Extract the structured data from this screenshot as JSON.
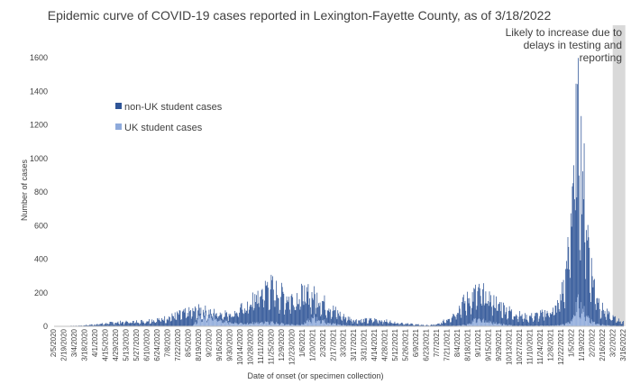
{
  "chart_data": {
    "type": "bar",
    "stacked": true,
    "title": "Epidemic curve of COVID-19 cases reported in Lexington-Fayette County, as of 3/18/2022",
    "xlabel": "Date of onset (or specimen collection)",
    "ylabel": "Number of cases",
    "ylim": [
      0,
      1600
    ],
    "yticks": [
      0,
      200,
      400,
      600,
      800,
      1000,
      1200,
      1400,
      1600
    ],
    "grid": false,
    "legend_position": "upper-left",
    "x_start_date": "2020-02-05",
    "x_end_date": "2022-03-15",
    "xtick_labels": [
      "2/5/2020",
      "2/19/2020",
      "3/4/2020",
      "3/18/2020",
      "4/1/2020",
      "4/15/2020",
      "4/29/2020",
      "5/13/2020",
      "5/27/2020",
      "6/10/2020",
      "6/24/2020",
      "7/8/2020",
      "7/22/2020",
      "8/5/2020",
      "8/19/2020",
      "9/2/2020",
      "9/16/2020",
      "9/30/2020",
      "10/14/2020",
      "10/28/2020",
      "11/11/2020",
      "11/25/2020",
      "12/9/2020",
      "12/23/2020",
      "1/6/2021",
      "1/20/2021",
      "2/3/2021",
      "2/17/2021",
      "3/3/2021",
      "3/17/2021",
      "3/31/2021",
      "4/14/2021",
      "4/28/2021",
      "5/12/2021",
      "5/26/2021",
      "6/9/2021",
      "6/23/2021",
      "7/7/2021",
      "7/21/2021",
      "8/4/2021",
      "8/18/2021",
      "9/1/2021",
      "9/15/2021",
      "9/29/2021",
      "10/13/2021",
      "10/27/2021",
      "11/10/2021",
      "11/24/2021",
      "12/8/2021",
      "12/22/2021",
      "1/5/2022",
      "1/19/2022",
      "2/2/2022",
      "2/16/2022",
      "3/2/2022",
      "3/16/2022"
    ],
    "series": [
      {
        "name": "non-UK student cases",
        "color": "#2f5597"
      },
      {
        "name": "UK student cases",
        "color": "#8eaadb"
      }
    ],
    "total_cases_profile": [
      [
        "2020-02-05",
        0
      ],
      [
        "2020-03-10",
        4
      ],
      [
        "2020-04-01",
        12
      ],
      [
        "2020-05-01",
        25
      ],
      [
        "2020-06-01",
        30
      ],
      [
        "2020-07-01",
        45
      ],
      [
        "2020-07-25",
        75
      ],
      [
        "2020-08-20",
        100
      ],
      [
        "2020-09-05",
        85
      ],
      [
        "2020-10-01",
        80
      ],
      [
        "2020-10-20",
        115
      ],
      [
        "2020-11-05",
        180
      ],
      [
        "2020-11-20",
        250
      ],
      [
        "2020-12-05",
        200
      ],
      [
        "2020-12-20",
        170
      ],
      [
        "2021-01-10",
        200
      ],
      [
        "2021-01-25",
        175
      ],
      [
        "2021-02-10",
        120
      ],
      [
        "2021-03-01",
        60
      ],
      [
        "2021-03-20",
        35
      ],
      [
        "2021-04-15",
        40
      ],
      [
        "2021-05-10",
        25
      ],
      [
        "2021-06-10",
        10
      ],
      [
        "2021-06-25",
        6
      ],
      [
        "2021-07-10",
        15
      ],
      [
        "2021-07-25",
        60
      ],
      [
        "2021-08-10",
        140
      ],
      [
        "2021-08-28",
        200
      ],
      [
        "2021-09-10",
        190
      ],
      [
        "2021-09-25",
        140
      ],
      [
        "2021-10-15",
        85
      ],
      [
        "2021-11-05",
        55
      ],
      [
        "2021-11-25",
        75
      ],
      [
        "2021-12-15",
        110
      ],
      [
        "2021-12-28",
        300
      ],
      [
        "2022-01-03",
        700
      ],
      [
        "2022-01-08",
        1050
      ],
      [
        "2022-01-13",
        1200
      ],
      [
        "2022-01-18",
        1000
      ],
      [
        "2022-01-25",
        600
      ],
      [
        "2022-02-01",
        300
      ],
      [
        "2022-02-12",
        120
      ],
      [
        "2022-02-25",
        60
      ],
      [
        "2022-03-15",
        25
      ]
    ],
    "uk_student_share_profile": [
      [
        "2020-02-05",
        0.02
      ],
      [
        "2020-08-10",
        0.03
      ],
      [
        "2020-08-20",
        0.6
      ],
      [
        "2020-09-01",
        0.7
      ],
      [
        "2020-09-20",
        0.45
      ],
      [
        "2020-10-15",
        0.15
      ],
      [
        "2021-01-05",
        0.05
      ],
      [
        "2021-01-20",
        0.3
      ],
      [
        "2021-02-20",
        0.15
      ],
      [
        "2021-04-01",
        0.05
      ],
      [
        "2021-08-15",
        0.05
      ],
      [
        "2021-08-25",
        0.2
      ],
      [
        "2021-09-20",
        0.15
      ],
      [
        "2021-10-20",
        0.05
      ],
      [
        "2022-01-05",
        0.05
      ],
      [
        "2022-01-12",
        0.12
      ],
      [
        "2022-02-01",
        0.1
      ],
      [
        "2022-03-15",
        0.05
      ]
    ],
    "shaded_period": {
      "start": "2022-03-01",
      "end": "2022-03-18"
    },
    "annotations": [
      "Likely to increase due to",
      "delays in testing and",
      "reporting"
    ]
  }
}
